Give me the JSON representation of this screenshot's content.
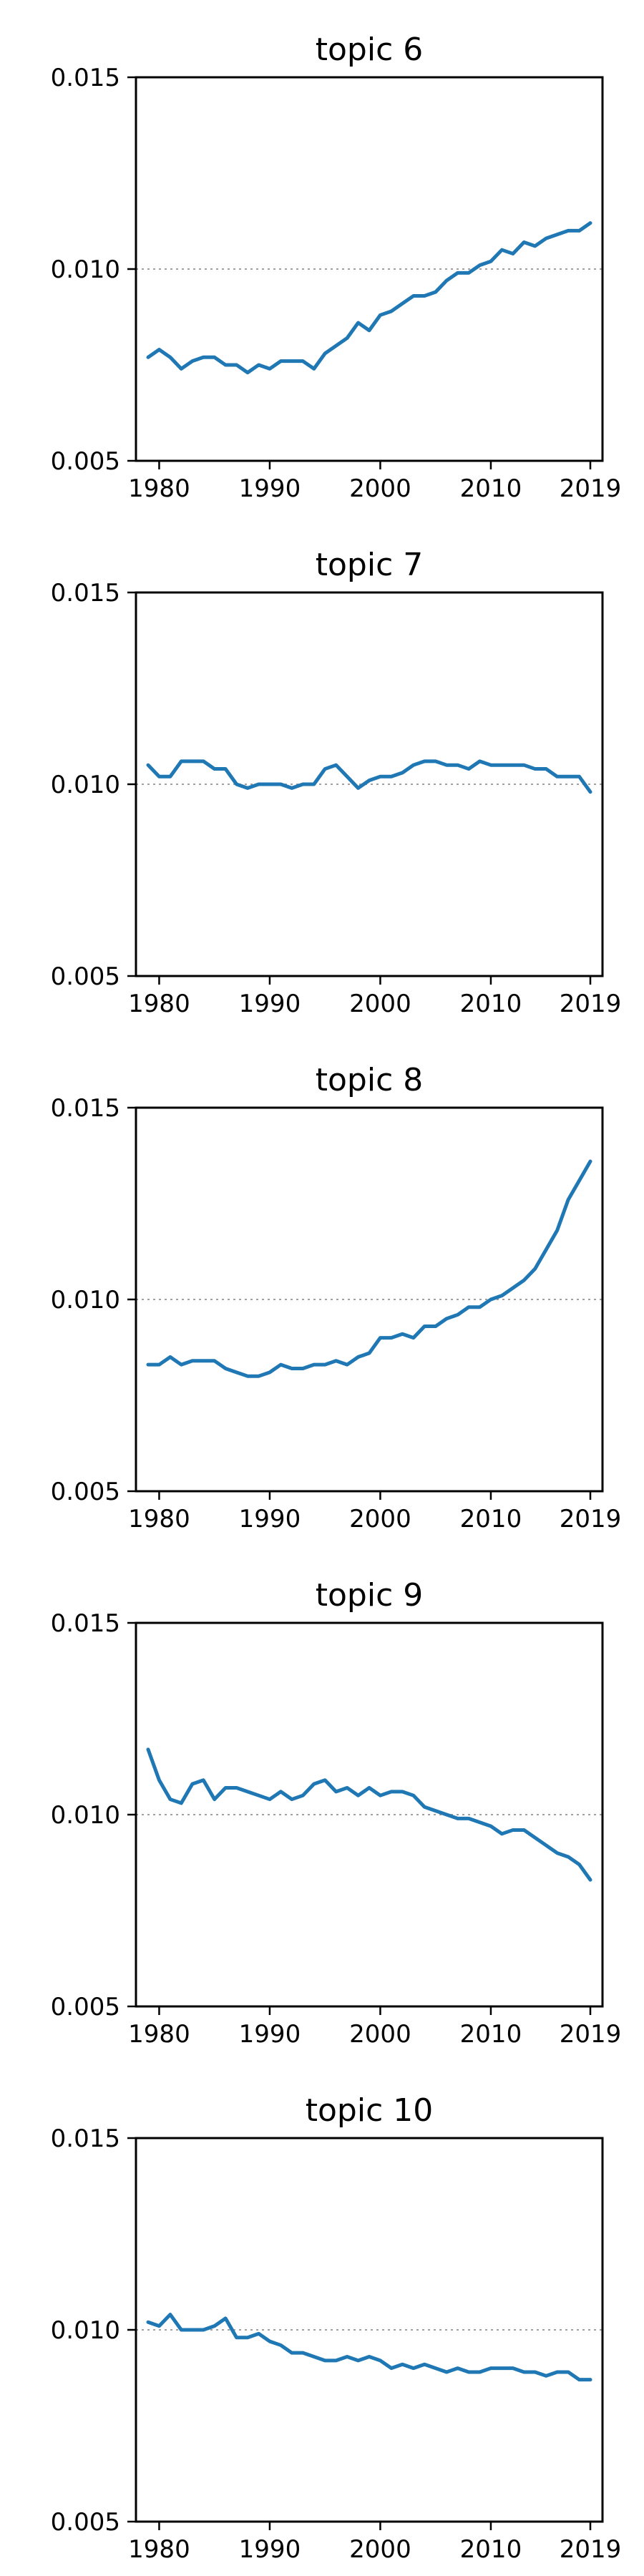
{
  "chart_data": [
    {
      "type": "line",
      "title": "topic 6",
      "xlabel": "",
      "ylabel": "",
      "xlim": [
        1977.9,
        2020.1
      ],
      "ylim": [
        0.005,
        0.015
      ],
      "xticks": [
        1980,
        1990,
        2000,
        2010,
        2019
      ],
      "yticks": [
        0.005,
        0.01,
        0.015
      ],
      "ytick_labels": [
        "0.005",
        "0.010",
        "0.015"
      ],
      "reference_line": 0.01,
      "grid": false,
      "color": "#1f77b4",
      "x": [
        1979,
        1980,
        1981,
        1982,
        1983,
        1984,
        1985,
        1986,
        1987,
        1988,
        1989,
        1990,
        1991,
        1992,
        1993,
        1994,
        1995,
        1996,
        1997,
        1998,
        1999,
        2000,
        2001,
        2002,
        2003,
        2004,
        2005,
        2006,
        2007,
        2008,
        2009,
        2010,
        2011,
        2012,
        2013,
        2014,
        2015,
        2016,
        2017,
        2018,
        2019
      ],
      "y": [
        0.0077,
        0.0079,
        0.0077,
        0.0074,
        0.0076,
        0.0077,
        0.0077,
        0.0075,
        0.0075,
        0.0073,
        0.0075,
        0.0074,
        0.0076,
        0.0076,
        0.0076,
        0.0074,
        0.0078,
        0.008,
        0.0082,
        0.0086,
        0.0084,
        0.0088,
        0.0089,
        0.0091,
        0.0093,
        0.0093,
        0.0094,
        0.0097,
        0.0099,
        0.0099,
        0.0101,
        0.0102,
        0.0105,
        0.0104,
        0.0107,
        0.0106,
        0.0108,
        0.0109,
        0.011,
        0.011,
        0.0112
      ]
    },
    {
      "type": "line",
      "title": "topic 7",
      "xlabel": "",
      "ylabel": "",
      "xlim": [
        1977.9,
        2020.1
      ],
      "ylim": [
        0.005,
        0.015
      ],
      "xticks": [
        1980,
        1990,
        2000,
        2010,
        2019
      ],
      "yticks": [
        0.005,
        0.01,
        0.015
      ],
      "ytick_labels": [
        "0.005",
        "0.010",
        "0.015"
      ],
      "reference_line": 0.01,
      "grid": false,
      "color": "#1f77b4",
      "x": [
        1979,
        1980,
        1981,
        1982,
        1983,
        1984,
        1985,
        1986,
        1987,
        1988,
        1989,
        1990,
        1991,
        1992,
        1993,
        1994,
        1995,
        1996,
        1997,
        1998,
        1999,
        2000,
        2001,
        2002,
        2003,
        2004,
        2005,
        2006,
        2007,
        2008,
        2009,
        2010,
        2011,
        2012,
        2013,
        2014,
        2015,
        2016,
        2017,
        2018,
        2019
      ],
      "y": [
        0.0105,
        0.0102,
        0.0102,
        0.0106,
        0.0106,
        0.0106,
        0.0104,
        0.0104,
        0.01,
        0.0099,
        0.01,
        0.01,
        0.01,
        0.0099,
        0.01,
        0.01,
        0.0104,
        0.0105,
        0.0102,
        0.0099,
        0.0101,
        0.0102,
        0.0102,
        0.0103,
        0.0105,
        0.0106,
        0.0106,
        0.0105,
        0.0105,
        0.0104,
        0.0106,
        0.0105,
        0.0105,
        0.0105,
        0.0105,
        0.0104,
        0.0104,
        0.0102,
        0.0102,
        0.0102,
        0.0098
      ]
    },
    {
      "type": "line",
      "title": "topic 8",
      "xlabel": "",
      "ylabel": "",
      "xlim": [
        1977.9,
        2020.1
      ],
      "ylim": [
        0.005,
        0.015
      ],
      "xticks": [
        1980,
        1990,
        2000,
        2010,
        2019
      ],
      "yticks": [
        0.005,
        0.01,
        0.015
      ],
      "ytick_labels": [
        "0.005",
        "0.010",
        "0.015"
      ],
      "reference_line": 0.01,
      "grid": false,
      "color": "#1f77b4",
      "x": [
        1979,
        1980,
        1981,
        1982,
        1983,
        1984,
        1985,
        1986,
        1987,
        1988,
        1989,
        1990,
        1991,
        1992,
        1993,
        1994,
        1995,
        1996,
        1997,
        1998,
        1999,
        2000,
        2001,
        2002,
        2003,
        2004,
        2005,
        2006,
        2007,
        2008,
        2009,
        2010,
        2011,
        2012,
        2013,
        2014,
        2015,
        2016,
        2017,
        2018,
        2019
      ],
      "y": [
        0.0083,
        0.0083,
        0.0085,
        0.0083,
        0.0084,
        0.0084,
        0.0084,
        0.0082,
        0.0081,
        0.008,
        0.008,
        0.0081,
        0.0083,
        0.0082,
        0.0082,
        0.0083,
        0.0083,
        0.0084,
        0.0083,
        0.0085,
        0.0086,
        0.009,
        0.009,
        0.0091,
        0.009,
        0.0093,
        0.0093,
        0.0095,
        0.0096,
        0.0098,
        0.0098,
        0.01,
        0.0101,
        0.0103,
        0.0105,
        0.0108,
        0.0113,
        0.0118,
        0.0126,
        0.0131,
        0.0136
      ]
    },
    {
      "type": "line",
      "title": "topic 9",
      "xlabel": "",
      "ylabel": "",
      "xlim": [
        1977.9,
        2020.1
      ],
      "ylim": [
        0.005,
        0.015
      ],
      "xticks": [
        1980,
        1990,
        2000,
        2010,
        2019
      ],
      "yticks": [
        0.005,
        0.01,
        0.015
      ],
      "ytick_labels": [
        "0.005",
        "0.010",
        "0.015"
      ],
      "reference_line": 0.01,
      "grid": false,
      "color": "#1f77b4",
      "x": [
        1979,
        1980,
        1981,
        1982,
        1983,
        1984,
        1985,
        1986,
        1987,
        1988,
        1989,
        1990,
        1991,
        1992,
        1993,
        1994,
        1995,
        1996,
        1997,
        1998,
        1999,
        2000,
        2001,
        2002,
        2003,
        2004,
        2005,
        2006,
        2007,
        2008,
        2009,
        2010,
        2011,
        2012,
        2013,
        2014,
        2015,
        2016,
        2017,
        2018,
        2019
      ],
      "y": [
        0.0117,
        0.0109,
        0.0104,
        0.0103,
        0.0108,
        0.0109,
        0.0104,
        0.0107,
        0.0107,
        0.0106,
        0.0105,
        0.0104,
        0.0106,
        0.0104,
        0.0105,
        0.0108,
        0.0109,
        0.0106,
        0.0107,
        0.0105,
        0.0107,
        0.0105,
        0.0106,
        0.0106,
        0.0105,
        0.0102,
        0.0101,
        0.01,
        0.0099,
        0.0099,
        0.0098,
        0.0097,
        0.0095,
        0.0096,
        0.0096,
        0.0094,
        0.0092,
        0.009,
        0.0089,
        0.0087,
        0.0083
      ]
    },
    {
      "type": "line",
      "title": "topic 10",
      "xlabel": "",
      "ylabel": "",
      "xlim": [
        1977.9,
        2020.1
      ],
      "ylim": [
        0.005,
        0.015
      ],
      "xticks": [
        1980,
        1990,
        2000,
        2010,
        2019
      ],
      "yticks": [
        0.005,
        0.01,
        0.015
      ],
      "ytick_labels": [
        "0.005",
        "0.010",
        "0.015"
      ],
      "reference_line": 0.01,
      "grid": false,
      "color": "#1f77b4",
      "x": [
        1979,
        1980,
        1981,
        1982,
        1983,
        1984,
        1985,
        1986,
        1987,
        1988,
        1989,
        1990,
        1991,
        1992,
        1993,
        1994,
        1995,
        1996,
        1997,
        1998,
        1999,
        2000,
        2001,
        2002,
        2003,
        2004,
        2005,
        2006,
        2007,
        2008,
        2009,
        2010,
        2011,
        2012,
        2013,
        2014,
        2015,
        2016,
        2017,
        2018,
        2019
      ],
      "y": [
        0.0102,
        0.0101,
        0.0104,
        0.01,
        0.01,
        0.01,
        0.0101,
        0.0103,
        0.0098,
        0.0098,
        0.0099,
        0.0097,
        0.0096,
        0.0094,
        0.0094,
        0.0093,
        0.0092,
        0.0092,
        0.0093,
        0.0092,
        0.0093,
        0.0092,
        0.009,
        0.0091,
        0.009,
        0.0091,
        0.009,
        0.0089,
        0.009,
        0.0089,
        0.0089,
        0.009,
        0.009,
        0.009,
        0.0089,
        0.0089,
        0.0088,
        0.0089,
        0.0089,
        0.0087,
        0.0087
      ]
    }
  ]
}
